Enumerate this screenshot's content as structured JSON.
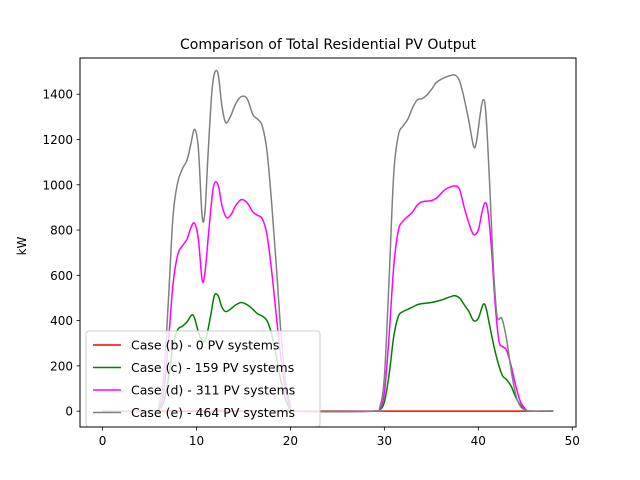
{
  "chart_data": {
    "type": "line",
    "title": "Comparison of Total Residential PV Output",
    "xlabel": "",
    "ylabel": "kW",
    "xlim": [
      -2.4,
      50.4
    ],
    "ylim": [
      -70,
      1560
    ],
    "xticks": [
      0,
      10,
      20,
      30,
      40,
      50
    ],
    "yticks": [
      0,
      200,
      400,
      600,
      800,
      1000,
      1200,
      1400
    ],
    "grid": false,
    "legend_position": "lower-left",
    "series": [
      {
        "name": "Case (b) - 0 PV systems",
        "color": "#ff0000",
        "points": [
          [
            0,
            0
          ],
          [
            48,
            0
          ]
        ]
      },
      {
        "name": "Case (c) - 159 PV systems",
        "color": "#008000",
        "points": [
          [
            0,
            0
          ],
          [
            5.5,
            0
          ],
          [
            6,
            8
          ],
          [
            6.5,
            40
          ],
          [
            7,
            140
          ],
          [
            7.5,
            290
          ],
          [
            8,
            360
          ],
          [
            8.5,
            375
          ],
          [
            9,
            395
          ],
          [
            9.5,
            425
          ],
          [
            9.8,
            410
          ],
          [
            10.2,
            350
          ],
          [
            10.6,
            310
          ],
          [
            11,
            320
          ],
          [
            11.5,
            420
          ],
          [
            11.9,
            510
          ],
          [
            12.3,
            510
          ],
          [
            12.7,
            460
          ],
          [
            13.1,
            440
          ],
          [
            13.6,
            450
          ],
          [
            14.2,
            470
          ],
          [
            14.8,
            480
          ],
          [
            15.4,
            470
          ],
          [
            16,
            450
          ],
          [
            16.5,
            430
          ],
          [
            17,
            420
          ],
          [
            17.5,
            400
          ],
          [
            18,
            340
          ],
          [
            18.5,
            240
          ],
          [
            19,
            130
          ],
          [
            19.5,
            50
          ],
          [
            20,
            10
          ],
          [
            20.5,
            0
          ],
          [
            29,
            0
          ],
          [
            29.5,
            5
          ],
          [
            30,
            40
          ],
          [
            30.5,
            160
          ],
          [
            31,
            330
          ],
          [
            31.5,
            420
          ],
          [
            32,
            440
          ],
          [
            32.5,
            450
          ],
          [
            33,
            460
          ],
          [
            33.5,
            470
          ],
          [
            34,
            475
          ],
          [
            35,
            480
          ],
          [
            36,
            490
          ],
          [
            37,
            505
          ],
          [
            37.5,
            510
          ],
          [
            38,
            500
          ],
          [
            38.5,
            470
          ],
          [
            39,
            440
          ],
          [
            39.5,
            400
          ],
          [
            40,
            410
          ],
          [
            40.5,
            470
          ],
          [
            40.8,
            460
          ],
          [
            41.2,
            380
          ],
          [
            41.7,
            280
          ],
          [
            42.2,
            200
          ],
          [
            42.6,
            155
          ],
          [
            43,
            140
          ],
          [
            43.5,
            110
          ],
          [
            44,
            60
          ],
          [
            44.5,
            25
          ],
          [
            45,
            5
          ],
          [
            45.5,
            0
          ],
          [
            48,
            0
          ]
        ]
      },
      {
        "name": "Case (d) - 311 PV systems",
        "color": "#ff00ff",
        "points": [
          [
            0,
            0
          ],
          [
            5.5,
            0
          ],
          [
            6,
            15
          ],
          [
            6.5,
            80
          ],
          [
            7,
            300
          ],
          [
            7.5,
            560
          ],
          [
            8,
            690
          ],
          [
            8.5,
            730
          ],
          [
            9,
            760
          ],
          [
            9.4,
            810
          ],
          [
            9.8,
            830
          ],
          [
            10.2,
            760
          ],
          [
            10.6,
            580
          ],
          [
            10.9,
            610
          ],
          [
            11.3,
            790
          ],
          [
            11.8,
            990
          ],
          [
            12.3,
            1000
          ],
          [
            12.7,
            910
          ],
          [
            13.2,
            855
          ],
          [
            13.7,
            870
          ],
          [
            14.2,
            910
          ],
          [
            14.8,
            935
          ],
          [
            15.4,
            920
          ],
          [
            16,
            880
          ],
          [
            16.5,
            865
          ],
          [
            17,
            850
          ],
          [
            17.5,
            780
          ],
          [
            18,
            620
          ],
          [
            18.5,
            420
          ],
          [
            19,
            230
          ],
          [
            19.5,
            90
          ],
          [
            20,
            20
          ],
          [
            20.5,
            0
          ],
          [
            29,
            0
          ],
          [
            29.5,
            10
          ],
          [
            30,
            80
          ],
          [
            30.5,
            330
          ],
          [
            31,
            640
          ],
          [
            31.5,
            800
          ],
          [
            32,
            840
          ],
          [
            32.5,
            860
          ],
          [
            33,
            880
          ],
          [
            33.5,
            910
          ],
          [
            34,
            925
          ],
          [
            35,
            930
          ],
          [
            35.5,
            940
          ],
          [
            36,
            960
          ],
          [
            36.5,
            980
          ],
          [
            37,
            990
          ],
          [
            37.5,
            995
          ],
          [
            38,
            980
          ],
          [
            38.5,
            900
          ],
          [
            39,
            830
          ],
          [
            39.5,
            780
          ],
          [
            40,
            800
          ],
          [
            40.4,
            880
          ],
          [
            40.7,
            920
          ],
          [
            41,
            890
          ],
          [
            41.4,
            720
          ],
          [
            41.8,
            470
          ],
          [
            42.2,
            310
          ],
          [
            42.6,
            285
          ],
          [
            43,
            270
          ],
          [
            43.5,
            200
          ],
          [
            44,
            110
          ],
          [
            44.5,
            40
          ],
          [
            45,
            10
          ],
          [
            45.5,
            0
          ],
          [
            48,
            0
          ]
        ]
      },
      {
        "name": "Case (e) - 464 PV systems",
        "color": "#808080",
        "points": [
          [
            0,
            0
          ],
          [
            5.5,
            0
          ],
          [
            6,
            25
          ],
          [
            6.5,
            150
          ],
          [
            7,
            480
          ],
          [
            7.5,
            860
          ],
          [
            8,
            1010
          ],
          [
            8.5,
            1070
          ],
          [
            9,
            1110
          ],
          [
            9.4,
            1180
          ],
          [
            9.8,
            1245
          ],
          [
            10.2,
            1160
          ],
          [
            10.6,
            860
          ],
          [
            10.9,
            880
          ],
          [
            11.2,
            1110
          ],
          [
            11.6,
            1390
          ],
          [
            11.9,
            1490
          ],
          [
            12.3,
            1490
          ],
          [
            12.7,
            1350
          ],
          [
            13.1,
            1275
          ],
          [
            13.6,
            1300
          ],
          [
            14.2,
            1360
          ],
          [
            14.8,
            1390
          ],
          [
            15.4,
            1380
          ],
          [
            16,
            1310
          ],
          [
            16.5,
            1290
          ],
          [
            17,
            1260
          ],
          [
            17.5,
            1150
          ],
          [
            18,
            920
          ],
          [
            18.5,
            640
          ],
          [
            19,
            340
          ],
          [
            19.5,
            130
          ],
          [
            20,
            30
          ],
          [
            20.5,
            0
          ],
          [
            29,
            0
          ],
          [
            29.5,
            15
          ],
          [
            30,
            150
          ],
          [
            30.5,
            580
          ],
          [
            31,
            1050
          ],
          [
            31.5,
            1220
          ],
          [
            32,
            1260
          ],
          [
            32.5,
            1290
          ],
          [
            33,
            1340
          ],
          [
            33.5,
            1375
          ],
          [
            34,
            1380
          ],
          [
            34.5,
            1395
          ],
          [
            35,
            1420
          ],
          [
            35.5,
            1450
          ],
          [
            36,
            1465
          ],
          [
            36.5,
            1475
          ],
          [
            37,
            1482
          ],
          [
            37.5,
            1485
          ],
          [
            38,
            1460
          ],
          [
            38.5,
            1380
          ],
          [
            39,
            1280
          ],
          [
            39.5,
            1170
          ],
          [
            39.8,
            1190
          ],
          [
            40.2,
            1310
          ],
          [
            40.5,
            1375
          ],
          [
            40.8,
            1320
          ],
          [
            41.2,
            1010
          ],
          [
            41.6,
            640
          ],
          [
            42,
            420
          ],
          [
            42.5,
            410
          ],
          [
            43,
            320
          ],
          [
            43.5,
            180
          ],
          [
            44,
            70
          ],
          [
            44.5,
            20
          ],
          [
            45,
            5
          ],
          [
            45.5,
            0
          ],
          [
            48,
            0
          ]
        ]
      }
    ]
  }
}
